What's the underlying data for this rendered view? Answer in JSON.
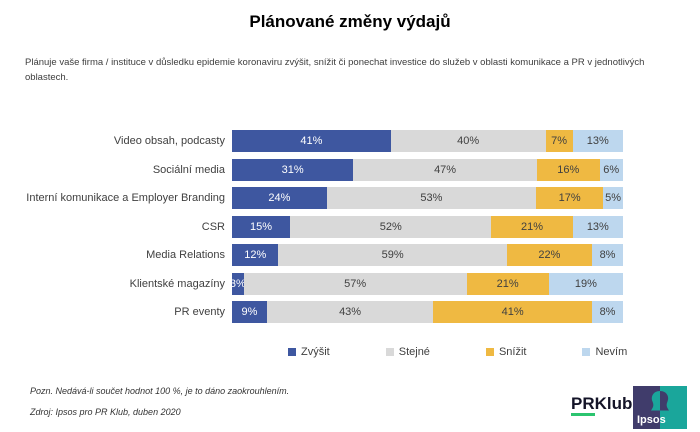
{
  "page": {
    "title": "Plánované změny výdajů",
    "subtitle": "Plánuje vaše firma / instituce v důsledku epidemie koronaviru zvýšit, snížit či ponechat investice do služeb v oblasti komunikace a PR v jednotlivých oblastech."
  },
  "chart_data": {
    "type": "bar",
    "stacked": true,
    "orientation": "horizontal",
    "value_suffix": "%",
    "xlim": [
      0,
      100
    ],
    "grid": false,
    "legend_position": "bottom",
    "categories": [
      "Video obsah, podcasty",
      "Sociální media",
      "Interní komunikace a Employer Branding",
      "CSR",
      "Media Relations",
      "Klientské magazíny",
      "PR eventy"
    ],
    "series": [
      {
        "name": "Zvýšit",
        "color": "#3E57A0",
        "label_color": "#FFFFFF",
        "values": [
          41,
          31,
          24,
          15,
          12,
          3,
          9
        ]
      },
      {
        "name": "Stejné",
        "color": "#D9D9D9",
        "label_color": "#404040",
        "values": [
          40,
          47,
          53,
          52,
          59,
          57,
          43
        ]
      },
      {
        "name": "Snížit",
        "color": "#EFB942",
        "label_color": "#404040",
        "values": [
          7,
          16,
          17,
          21,
          22,
          21,
          41
        ]
      },
      {
        "name": "Nevím",
        "color": "#BDD7EE",
        "label_color": "#404040",
        "values": [
          13,
          6,
          5,
          13,
          8,
          19,
          8
        ]
      }
    ]
  },
  "notes": {
    "rounding": "Pozn. Nedává-li součet hodnot 100 %, je to dáno zaokrouhlením.",
    "source": "Zdroj: Ipsos pro PR Klub, duben 2020"
  },
  "logos": {
    "prklub": {
      "part1": "PR",
      "part2": "Klub",
      "underline_color": "#2BC46F"
    },
    "ipsos": {
      "label": "Ipsos",
      "purple": "#403C6B",
      "teal": "#1AA69B"
    }
  }
}
